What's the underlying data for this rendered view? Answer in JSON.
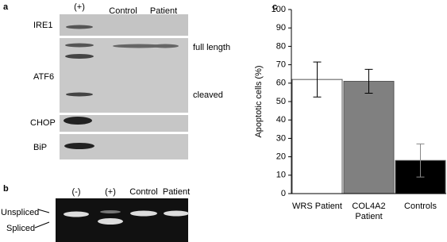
{
  "panel_a": {
    "label": "a",
    "columns": [
      "(+)",
      "Control",
      "Patient"
    ],
    "rows": [
      "IRE1",
      "ATF6",
      "CHOP",
      "BiP"
    ],
    "annotations": [
      "full length",
      "cleaved"
    ]
  },
  "panel_b": {
    "label": "b",
    "columns": [
      "(-)",
      "(+)",
      "Control",
      "Patient"
    ],
    "bands": [
      "Unspliced",
      "Spliced"
    ]
  },
  "chart_data": {
    "type": "bar",
    "panel_label": "c",
    "y_label": "Apoptotic cells (%)",
    "categories": [
      "WRS Patient",
      "COL4A2 Patient",
      "Controls"
    ],
    "values": [
      62,
      61,
      18
    ],
    "errors": [
      9.5,
      6.5,
      9
    ],
    "colors": [
      "#ffffff",
      "#808080",
      "#000000"
    ],
    "ylim": [
      0,
      100
    ],
    "yticks": [
      0,
      10,
      20,
      30,
      40,
      50,
      60,
      70,
      80,
      90,
      100
    ]
  }
}
